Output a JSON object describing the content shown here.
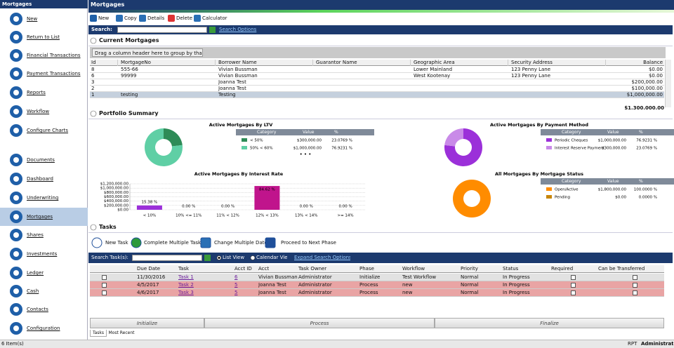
{
  "sidebar": {
    "title": "Mortgages",
    "items": [
      "New",
      "Return to List",
      "Financial Transactions",
      "Payment Transactions",
      "Reports",
      "Workflow",
      "Configure Charts",
      "Documents",
      "Dashboard",
      "Underwriting",
      "Mortgages",
      "Shares",
      "Investments",
      "Ledger",
      "Cash",
      "Contacts",
      "Configuration"
    ]
  },
  "header": {
    "title": "Mortgages"
  },
  "toolbar": [
    "New",
    "Copy",
    "Details",
    "Delete",
    "Calculator"
  ],
  "search": {
    "label": "Search:",
    "link": "Search Options"
  },
  "mortgages": {
    "title": "Current Mortgages",
    "group_hint": "Drag a column header here to group by that column.",
    "columns": [
      "Id",
      "MortgageNo",
      "Borrower Name",
      "Guarantor Name",
      "Geographic Area",
      "Security Address",
      "Balance"
    ],
    "rows": [
      [
        "8",
        "555-66",
        "Vivian  Bussman",
        null,
        "Lower Mainland",
        "123 Penny Lane",
        "$0.00"
      ],
      [
        "6",
        "99999",
        "Vivian  Bussman",
        null,
        "West Kootenay",
        "123 Penny Lane",
        "$0.00"
      ],
      [
        "3",
        null,
        "Joanna Test",
        null,
        null,
        null,
        "$200,000.00"
      ],
      [
        "2",
        null,
        "Joanna Test",
        null,
        null,
        null,
        "$100,000.00"
      ],
      [
        "1",
        "testing",
        "Testing",
        null,
        null,
        null,
        "$1,000,000.00"
      ]
    ],
    "total": "$1,300,000.00"
  },
  "portfolio": {
    "title": "Portfolio Summary"
  },
  "chart_data": [
    {
      "type": "donut",
      "title": "Active Mortgages By LTV",
      "table_header": [
        "Category",
        "Value",
        "%"
      ],
      "categories": [
        "< 50%",
        "50% < 60%"
      ],
      "amounts": [
        "$300,000.00",
        "$1,000,000.00"
      ],
      "values": [
        23.0769,
        76.9231
      ],
      "value_labels": [
        "23.0769 %",
        "76.9231 %"
      ],
      "colors": [
        "#2e8b57",
        "#5fcfa5"
      ]
    },
    {
      "type": "donut",
      "title": "Active Mortgages By Payment Method",
      "table_header": [
        "Category",
        "Value",
        "%"
      ],
      "categories": [
        "Periodic Cheques",
        "Interest Reserve Payment"
      ],
      "amounts": [
        "$1,000,000.00",
        "$300,000.00"
      ],
      "values": [
        76.9231,
        23.0769
      ],
      "value_labels": [
        "76.9231 %",
        "23.0769 %"
      ],
      "colors": [
        "#9b30d9",
        "#c98ae8"
      ]
    },
    {
      "type": "bar",
      "title": "Active Mortgages By Interest Rate",
      "categories": [
        "< 10%",
        "10% <= 11%",
        "11% < 12%",
        "12% < 13%",
        "13% < 14%",
        ">= 14%"
      ],
      "values": [
        200000,
        0,
        0,
        1100000,
        0,
        0
      ],
      "percent_labels": [
        "15.38 %",
        "0.00 %",
        "0.00 %",
        "84.62 %",
        "0.00 %",
        "0.00 %"
      ],
      "colors": [
        "#9b30d9",
        "#9b30d9",
        "#9b30d9",
        "#c0148c",
        "#9b30d9",
        "#9b30d9"
      ],
      "ylim": [
        0,
        1200000
      ],
      "yticks": [
        {
          "value": 0,
          "label": "$0.00"
        },
        {
          "value": 200000,
          "label": "$200,000.00"
        },
        {
          "value": 400000,
          "label": "$400,000.00"
        },
        {
          "value": 600000,
          "label": "$600,000.00"
        },
        {
          "value": 800000,
          "label": "$800,000.00"
        },
        {
          "value": 1000000,
          "label": "$1,000,000.00"
        },
        {
          "value": 1200000,
          "label": "$1,200,000.00"
        }
      ],
      "grid": true
    },
    {
      "type": "donut",
      "title": "All Mortgages By Mortgage Status",
      "table_header": [
        "Category",
        "Value",
        "%"
      ],
      "categories": [
        "Open/Active",
        "Pending"
      ],
      "amounts": [
        "$1,800,000.00",
        "$0.00"
      ],
      "values": [
        100,
        0
      ],
      "value_labels": [
        "100.0000 %",
        "0.0000 %"
      ],
      "colors": [
        "#ff8c00",
        "#c8860a"
      ]
    }
  ],
  "tasks": {
    "title": "Tasks",
    "toolbar": [
      "New Task",
      "Complete Multiple Tasks",
      "Change Multiple Dates",
      "Proceed to Next Phase"
    ],
    "search_label": "Search Task(s):",
    "views": [
      "List View",
      "Calendar View"
    ],
    "link": "Expand Search Options",
    "columns": [
      "Due Date",
      "Task",
      "Acct ID",
      "Acct",
      "Task Owner",
      "Phase",
      "Workflow",
      "Priority",
      "Status",
      "Required",
      "Can be Transferred"
    ],
    "rows": [
      [
        "11/30/2016",
        "Task 1",
        "6",
        "Vivian  Bussman",
        "Administrator",
        "Initialize",
        "Test Workflow",
        "Normal",
        "In Progress"
      ],
      [
        "4/5/2017",
        "Task 2",
        "5",
        "Joanna Test",
        "Administrator",
        "Process",
        "new",
        "Normal",
        "In Progress"
      ],
      [
        "4/6/2017",
        "Task 3",
        "5",
        "Joanna Test",
        "Administrator",
        "Process",
        "new",
        "Normal",
        "In Progress"
      ]
    ],
    "phases": [
      "Initialize",
      "Process",
      "Finalize"
    ],
    "tabs": [
      "Tasks",
      "Most Recent"
    ]
  },
  "status": {
    "left": "6 Item(s)",
    "rpt": "RPT",
    "user": "Administrator"
  }
}
